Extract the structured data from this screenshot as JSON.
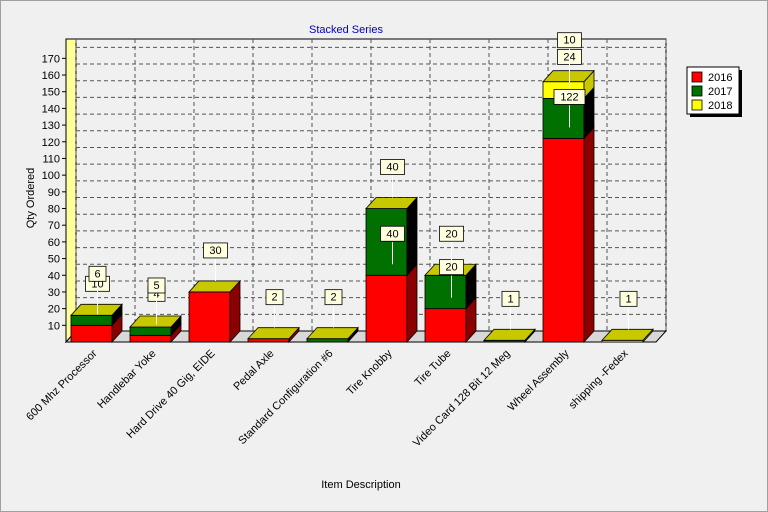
{
  "chart_data": {
    "type": "bar",
    "stacked": true,
    "title": "Stacked Series",
    "xlabel": "Item Description",
    "ylabel": "Qty Ordered",
    "ylim": [
      0,
      175
    ],
    "yticks": [
      10,
      20,
      30,
      40,
      50,
      60,
      70,
      80,
      90,
      100,
      110,
      120,
      130,
      140,
      150,
      160,
      170
    ],
    "grid": true,
    "legend_position": "top-right",
    "categories": [
      "600 Mhz Processor",
      "Handlebar Yoke",
      "Hard Drive 40 Gig, EIDE",
      "Pedal Axle",
      "Standard Configuration #6",
      "Tire Knobby",
      "Tire Tube",
      "Video Card 128 Bit 12 Meg",
      "Wheel Assembly",
      "shipping -Fedex"
    ],
    "series": [
      {
        "name": "2016",
        "color": "#ff0000",
        "side_color": "#8b0000",
        "values": [
          10,
          4,
          30,
          2,
          0,
          40,
          20,
          0,
          122,
          0
        ]
      },
      {
        "name": "2017",
        "color": "#007000",
        "side_color": "#000000",
        "values": [
          6,
          5,
          0,
          0,
          2,
          40,
          20,
          1,
          24,
          0
        ]
      },
      {
        "name": "2018",
        "color": "#ffff00",
        "side_color": "#c8c800",
        "values": [
          0,
          0,
          0,
          0,
          0,
          0,
          0,
          0,
          10,
          1
        ]
      }
    ],
    "data_labels": [
      {
        "category": 0,
        "value_text": "10",
        "at": 10
      },
      {
        "category": 0,
        "value_text": "6",
        "at": 16
      },
      {
        "category": 1,
        "value_text": "4",
        "at": 4
      },
      {
        "category": 1,
        "value_text": "5",
        "at": 9
      },
      {
        "category": 2,
        "value_text": "30",
        "at": 30
      },
      {
        "category": 3,
        "value_text": "2",
        "at": 2
      },
      {
        "category": 4,
        "value_text": "2",
        "at": 2
      },
      {
        "category": 5,
        "value_text": "40",
        "at": 40
      },
      {
        "category": 5,
        "value_text": "40",
        "at": 80
      },
      {
        "category": 6,
        "value_text": "20",
        "at": 20
      },
      {
        "category": 6,
        "value_text": "20",
        "at": 40
      },
      {
        "category": 7,
        "value_text": "1",
        "at": 1
      },
      {
        "category": 8,
        "value_text": "122",
        "at": 122
      },
      {
        "category": 8,
        "value_text": "24",
        "at": 146
      },
      {
        "category": 8,
        "value_text": "10",
        "at": 156
      },
      {
        "category": 9,
        "value_text": "1",
        "at": 1
      }
    ]
  }
}
